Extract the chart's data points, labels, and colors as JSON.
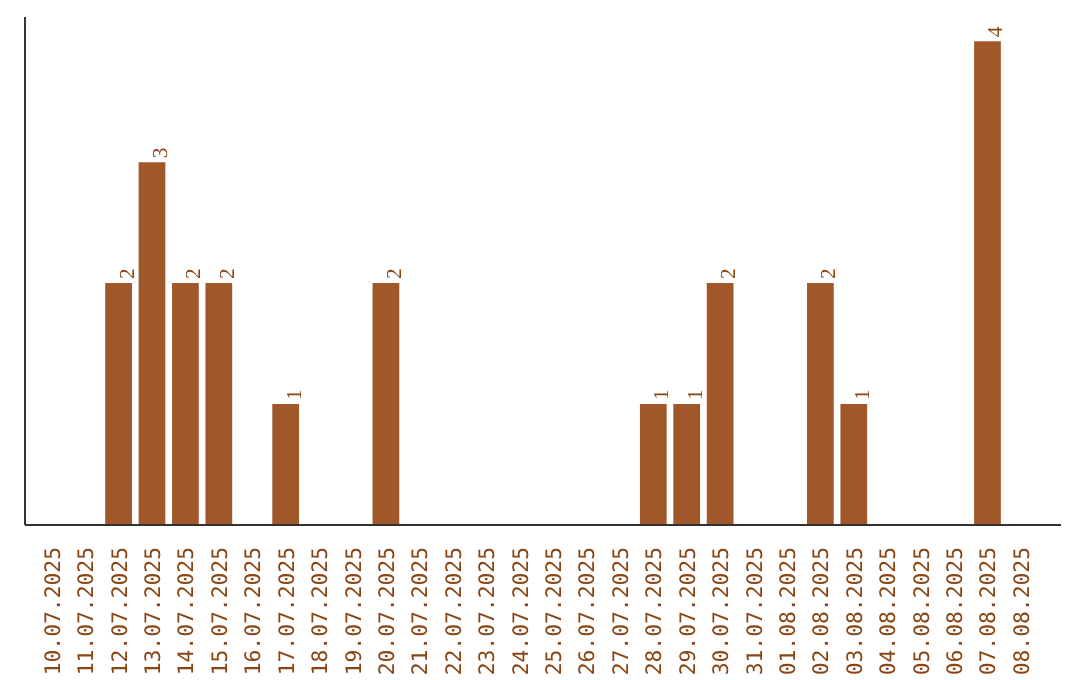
{
  "chart_data": {
    "type": "bar",
    "categories": [
      "10.07.2025",
      "11.07.2025",
      "12.07.2025",
      "13.07.2025",
      "14.07.2025",
      "15.07.2025",
      "16.07.2025",
      "17.07.2025",
      "18.07.2025",
      "19.07.2025",
      "20.07.2025",
      "21.07.2025",
      "22.07.2025",
      "23.07.2025",
      "24.07.2025",
      "25.07.2025",
      "26.07.2025",
      "27.07.2025",
      "28.07.2025",
      "29.07.2025",
      "30.07.2025",
      "31.07.2025",
      "01.08.2025",
      "02.08.2025",
      "03.08.2025",
      "04.08.2025",
      "05.08.2025",
      "06.08.2025",
      "07.08.2025",
      "08.08.2025"
    ],
    "values": [
      0,
      0,
      2,
      3,
      2,
      2,
      0,
      1,
      0,
      0,
      2,
      0,
      0,
      0,
      0,
      0,
      0,
      0,
      1,
      1,
      2,
      0,
      0,
      2,
      1,
      0,
      0,
      0,
      4,
      0
    ],
    "value_labels": [
      null,
      null,
      "2",
      "3",
      "2",
      "2",
      null,
      "1",
      null,
      null,
      "2",
      null,
      null,
      null,
      null,
      null,
      null,
      null,
      "1",
      "1",
      "2",
      null,
      null,
      "2",
      "1",
      null,
      null,
      null,
      "4",
      null
    ],
    "color": "#a0582a",
    "grid": false,
    "tick_labels": "x"
  }
}
